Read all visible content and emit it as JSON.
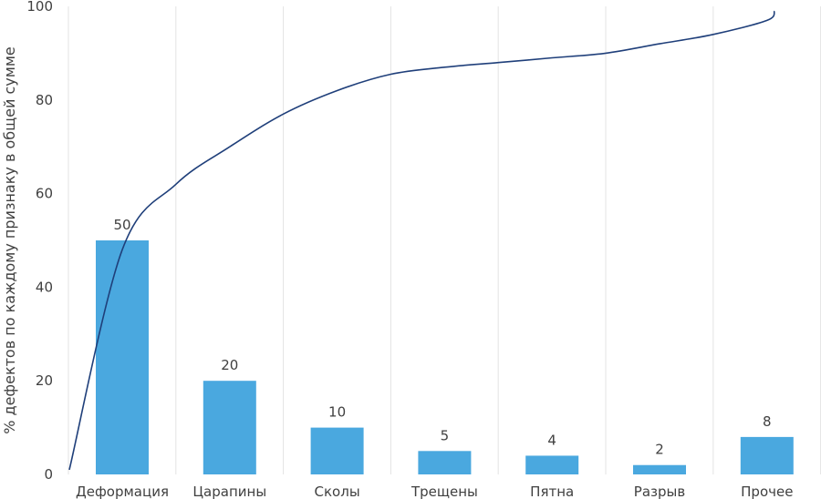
{
  "chart_data": {
    "type": "bar",
    "categories": [
      "Деформация",
      "Царапины",
      "Сколы",
      "Трещены",
      "Пятна",
      "Разрыв",
      "Прочее"
    ],
    "values": [
      50,
      20,
      10,
      5,
      4,
      2,
      8
    ],
    "data_labels": [
      "50",
      "20",
      "10",
      "5",
      "4",
      "2",
      "8"
    ],
    "ylabel": "% дефектов по каждому признаку в общей сумме",
    "xlabel": "",
    "ylim": [
      0,
      100
    ],
    "yticks": [
      0,
      20,
      40,
      60,
      80,
      100
    ],
    "grid": "vertical",
    "bar_color": "#4aa8df",
    "line_color": "#1f3f7a",
    "cumulative_line": {
      "x": [
        0.0,
        0.5,
        1.0,
        1.5,
        2.0,
        2.5,
        3.0,
        3.5,
        4.0,
        4.5,
        5.0,
        5.5,
        6.0,
        6.07
      ],
      "y": [
        48,
        62,
        70,
        77,
        82,
        85.5,
        87,
        88,
        89,
        90,
        92,
        94,
        97,
        99
      ]
    },
    "cumulative_line_start": 1
  }
}
